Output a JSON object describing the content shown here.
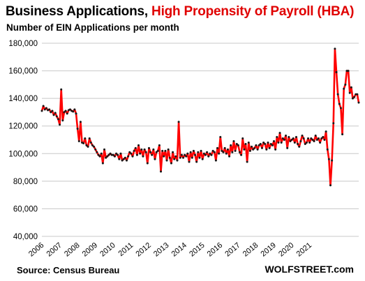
{
  "header": {
    "title_part1": "Business Applications,",
    "title_part2": "High Propensity of Payroll (HBA)",
    "subtitle": "Number of EIN Applications per month"
  },
  "footer": {
    "source": "Source: Census Bureau",
    "credit": "WOLFSTREET.com"
  },
  "colors": {
    "line": "#ff0000",
    "marker": "#1a1a1a",
    "grid": "#c8c8c8",
    "title_accent": "#e00000"
  },
  "chart_data": {
    "type": "line",
    "title": "Business Applications, High Propensity of Payroll (HBA)",
    "subtitle": "Number of EIN Applications per month",
    "xlabel": "",
    "ylabel": "",
    "ylim": [
      40000,
      180000
    ],
    "yticks": [
      40000,
      60000,
      80000,
      100000,
      120000,
      140000,
      160000,
      180000
    ],
    "ytick_labels": [
      "40,000",
      "60,000",
      "80,000",
      "100,000",
      "120,000",
      "140,000",
      "160,000",
      "180,000"
    ],
    "xticks": [
      "2006",
      "2007",
      "2008",
      "2009",
      "2010",
      "2011",
      "2012",
      "2013",
      "2014",
      "2015",
      "2016",
      "2017",
      "2018",
      "2019",
      "2020",
      "2021"
    ],
    "grid": true,
    "x_start": "2006-01",
    "frequency": "monthly",
    "series": [
      {
        "values": [
          131000,
          134500,
          132000,
          133000,
          131500,
          132000,
          130000,
          131000,
          128000,
          129500,
          127000,
          125000,
          121000,
          146500,
          124000,
          130000,
          131000,
          129000,
          131500,
          132000,
          131000,
          130500,
          132000,
          129000,
          118000,
          109000,
          123000,
          108000,
          107500,
          111000,
          106000,
          105000,
          111000,
          108000,
          106000,
          105000,
          103000,
          101000,
          99000,
          98000,
          100000,
          93000,
          103000,
          97000,
          98000,
          99000,
          100000,
          99000,
          99000,
          98000,
          100000,
          99000,
          96000,
          100000,
          95000,
          96000,
          97000,
          95000,
          98000,
          101000,
          100000,
          98000,
          102000,
          104000,
          99000,
          106000,
          100000,
          103000,
          98000,
          103000,
          101000,
          93000,
          104000,
          101000,
          99000,
          103000,
          96000,
          101000,
          102000,
          106000,
          87000,
          102000,
          98000,
          102000,
          95000,
          103000,
          97000,
          93000,
          101000,
          96000,
          98000,
          95000,
          123000,
          97000,
          99000,
          97000,
          99000,
          98000,
          100000,
          94000,
          101000,
          97000,
          102000,
          99000,
          94000,
          101000,
          97000,
          102000,
          96000,
          100000,
          99000,
          101000,
          98000,
          100000,
          99000,
          102000,
          101000,
          95000,
          104000,
          100000,
          112000,
          102000,
          101000,
          104000,
          100000,
          103000,
          98000,
          106000,
          101000,
          109000,
          102000,
          107000,
          106000,
          101000,
          99000,
          111000,
          103000,
          107000,
          94000,
          108000,
          102000,
          105000,
          103000,
          104000,
          106000,
          103000,
          106000,
          107000,
          104000,
          108000,
          107000,
          103000,
          108000,
          104000,
          107000,
          106000,
          109000,
          103000,
          112000,
          108000,
          115000,
          108000,
          111000,
          110000,
          113000,
          104000,
          112000,
          109000,
          110000,
          111000,
          108000,
          112000,
          107000,
          105000,
          109000,
          113000,
          111000,
          107000,
          108000,
          111000,
          108000,
          111000,
          110000,
          109000,
          113000,
          110000,
          111000,
          108000,
          111000,
          112000,
          110000,
          116000,
          103000,
          96000,
          77000,
          95000,
          122000,
          176000,
          159000,
          143000,
          136000,
          133000,
          114000,
          147000,
          150000,
          160000,
          160000,
          144000,
          148000,
          140000,
          141000,
          143000,
          143000,
          137000
        ]
      }
    ]
  }
}
